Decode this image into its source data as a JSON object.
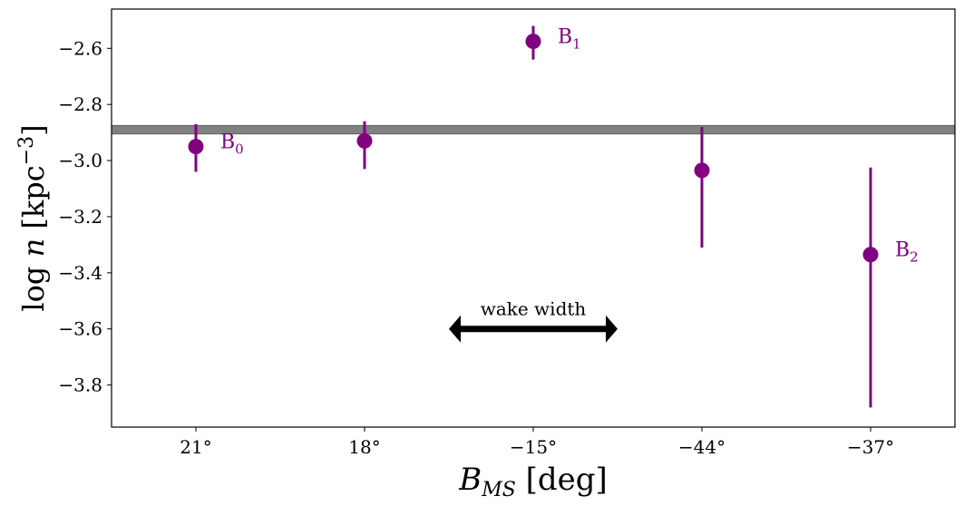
{
  "chart_data": {
    "type": "scatter",
    "title": "",
    "xlabel": "B_MS [deg]",
    "ylabel": "log n [kpc^-3]",
    "categories": [
      "21°",
      "18°",
      "−15°",
      "−44°",
      "−37°"
    ],
    "ylim": [
      -3.95,
      -2.46
    ],
    "yticks": [
      -2.6,
      -2.8,
      -3.0,
      -3.2,
      -3.4,
      -3.6,
      -3.8
    ],
    "yticks_text": [
      "−2.6",
      "−2.8",
      "−3.0",
      "−3.2",
      "−3.4",
      "−3.6",
      "−3.8"
    ],
    "grid": false,
    "series": [
      {
        "color": "#800080",
        "points": [
          {
            "x": 0,
            "y": -2.95,
            "err_low": -3.04,
            "err_high": -2.87,
            "label": "B",
            "sub": "0"
          },
          {
            "x": 1,
            "y": -2.93,
            "err_low": -3.03,
            "err_high": -2.86,
            "label": "",
            "sub": ""
          },
          {
            "x": 2,
            "y": -2.575,
            "err_low": -2.64,
            "err_high": -2.52,
            "label": "B",
            "sub": "1"
          },
          {
            "x": 3,
            "y": -3.035,
            "err_low": -3.31,
            "err_high": -2.88,
            "label": "",
            "sub": ""
          },
          {
            "x": 4,
            "y": -3.335,
            "err_low": -3.88,
            "err_high": -3.025,
            "label": "B",
            "sub": "2"
          }
        ]
      }
    ],
    "band": {
      "ymin": -2.905,
      "ymax": -2.875,
      "color": "#808080"
    },
    "annotation": {
      "text": "wake width",
      "x_from": 1.5,
      "x_to": 2.5,
      "y": -3.6
    }
  }
}
